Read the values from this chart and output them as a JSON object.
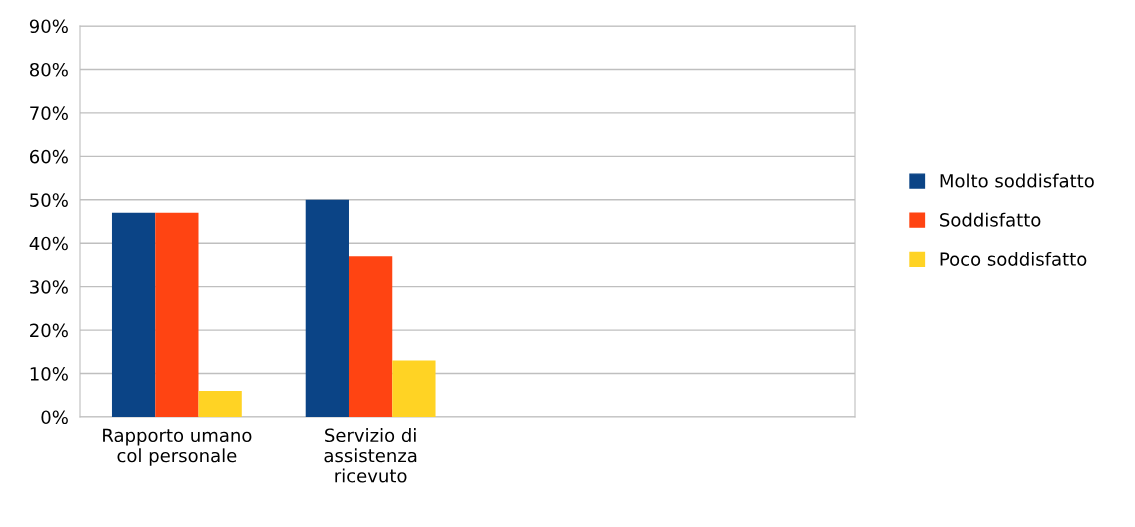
{
  "chart_data": {
    "type": "bar",
    "categories": [
      "Rapporto umano\ncol personale",
      "Servizio di\nassistenza\nricevuto",
      null,
      null
    ],
    "series": [
      {
        "name": "Molto soddisfatto",
        "color": "#0b4486",
        "values": [
          47,
          50,
          null,
          null
        ]
      },
      {
        "name": "Soddisfatto",
        "color": "#ff4412",
        "values": [
          47,
          37,
          null,
          null
        ]
      },
      {
        "name": "Poco soddisfatto",
        "color": "#ffd324",
        "values": [
          6,
          13,
          null,
          null
        ]
      }
    ],
    "ylim": [
      0,
      90
    ],
    "yticks": [
      {
        "value": 0,
        "label": "0%"
      },
      {
        "value": 10,
        "label": "10%"
      },
      {
        "value": 20,
        "label": "20%"
      },
      {
        "value": 30,
        "label": "30%"
      },
      {
        "value": 40,
        "label": "40%"
      },
      {
        "value": 50,
        "label": "50%"
      },
      {
        "value": 60,
        "label": "60%"
      },
      {
        "value": 70,
        "label": "70%"
      },
      {
        "value": 80,
        "label": "80%"
      },
      {
        "value": 90,
        "label": "90%"
      }
    ],
    "grid": "y",
    "legend": "right"
  }
}
